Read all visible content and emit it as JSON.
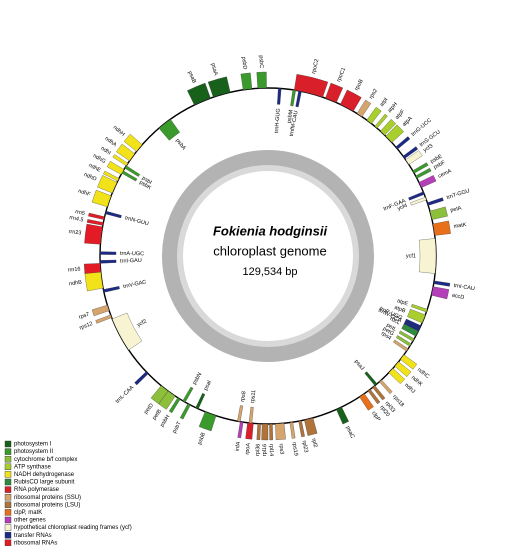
{
  "genome": {
    "name": "Fokienia hodginsii",
    "subtitle": "chloroplast genome",
    "length": "129,534 bp"
  },
  "legend": [
    {
      "label": "photosystem I",
      "color": "#17611a",
      "genes": [
        "psaB",
        "psaA",
        "psaC",
        "psaI",
        "psaJ"
      ]
    },
    {
      "label": "photosystem II",
      "color": "#3b9a2c",
      "genes": [
        "psbD",
        "psbC",
        "psbA",
        "psbB",
        "psbE",
        "psbF",
        "psbK",
        "psbI",
        "psbM",
        "psbN",
        "psbT",
        "psbH"
      ]
    },
    {
      "label": "cytochrome b/f complex",
      "color": "#8cbf3a",
      "genes": [
        "petA",
        "petB",
        "petD",
        "petG",
        "petL"
      ]
    },
    {
      "label": "ATP synthase",
      "color": "#a9cf2e",
      "genes": [
        "atpI",
        "atpH",
        "atpF",
        "atpA",
        "atpB",
        "atpE"
      ]
    },
    {
      "label": "NADH dehydrogenase",
      "color": "#f2e21a",
      "genes": [
        "ndhC",
        "ndhK",
        "ndhJ",
        "ndhB",
        "ndhF",
        "ndhD",
        "ndhE",
        "ndhG",
        "ndhI",
        "ndhA",
        "ndhH"
      ]
    },
    {
      "label": "RubisCO large subunit",
      "color": "#2f8a3d",
      "genes": [
        "rbcL"
      ]
    },
    {
      "label": "RNA polymerase",
      "color": "#d9202a",
      "genes": [
        "rpoC2",
        "rpoC1",
        "rpoB",
        "rpoA"
      ]
    },
    {
      "label": "ribosomal proteins (SSU)",
      "color": "#d6a56e",
      "genes": [
        "rps2",
        "rps4",
        "rps11",
        "rps8",
        "rps3",
        "rps19",
        "rps7",
        "rps12",
        "rps18"
      ]
    },
    {
      "label": "ribosomal proteins (LSU)",
      "color": "#b0733a",
      "genes": [
        "rpl14",
        "rpl16",
        "rpl36",
        "rpl33",
        "rpl20",
        "rpl2",
        "rpl23"
      ]
    },
    {
      "label": "clpP, matK",
      "color": "#e8701a",
      "genes": [
        "clpP",
        "matK"
      ]
    },
    {
      "label": "other genes",
      "color": "#b43fb8",
      "genes": [
        "cemA",
        "accD",
        "infA"
      ]
    },
    {
      "label": "hypothetical chloroplast reading frames (ycf)",
      "color": "#f8f4d2",
      "genes": [
        "ycf1",
        "ycf2",
        "ycf3",
        "ycf4"
      ]
    },
    {
      "label": "transfer RNAs",
      "color": "#1b2a86",
      "genes": [
        "trnH-GUG",
        "trnfM-CAU",
        "trnS-GCU",
        "trnT-GGU",
        "trnF-GAA",
        "trnG-UCC",
        "trnP-UGG",
        "trnW-CCA",
        "trnI-CAU",
        "trnL-CAA",
        "trnV-GAC",
        "trnI-GAU",
        "trnA-UGC",
        "trnN-GUU"
      ]
    },
    {
      "label": "ribosomal RNAs",
      "color": "#e31b26",
      "genes": [
        "rrn16",
        "rrn23",
        "rrn4.5",
        "rrn5"
      ]
    }
  ]
}
